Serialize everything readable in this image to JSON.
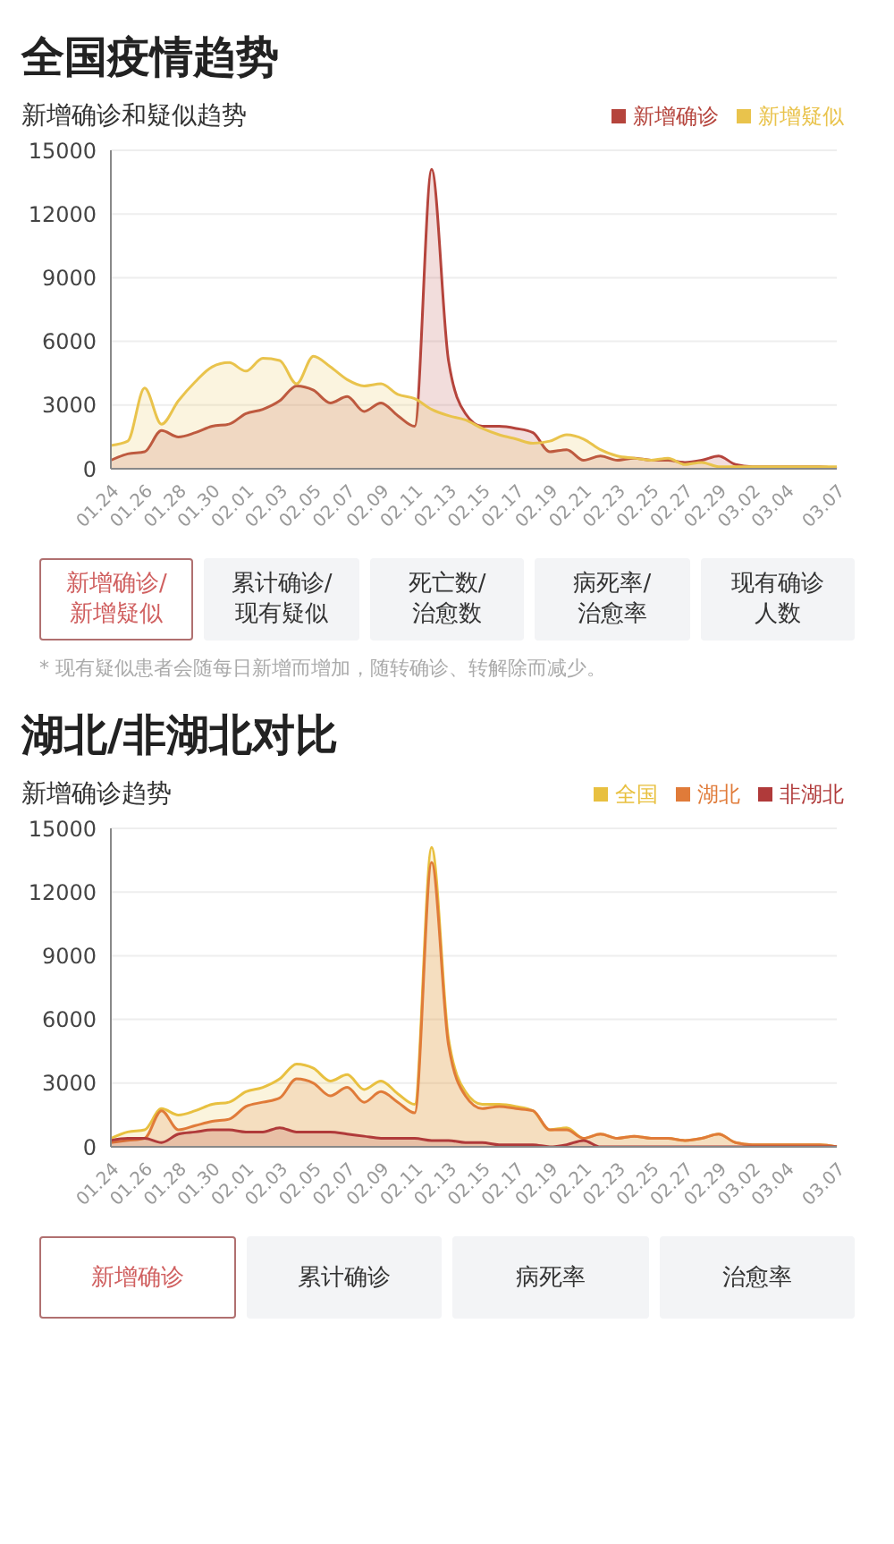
{
  "chart_data": [
    {
      "type": "area",
      "title": "全国疫情趋势",
      "subtitle": "新增确诊和疑似趋势",
      "categories": [
        "01.24",
        null,
        "01.26",
        null,
        "01.28",
        null,
        "01.30",
        null,
        "02.01",
        null,
        "02.03",
        null,
        "02.05",
        null,
        "02.07",
        null,
        "02.09",
        null,
        "02.11",
        null,
        "02.13",
        null,
        "02.15",
        null,
        "02.17",
        null,
        "02.19",
        null,
        "02.21",
        null,
        "02.23",
        null,
        "02.25",
        null,
        "02.27",
        null,
        "02.29",
        null,
        "03.02",
        null,
        "03.04",
        null,
        null,
        "03.07"
      ],
      "series": [
        {
          "name": "新增确诊",
          "color": "#b5443c",
          "values": [
            400,
            700,
            800,
            1800,
            1500,
            1700,
            2000,
            2100,
            2600,
            2800,
            3200,
            3900,
            3700,
            3100,
            3400,
            2700,
            3100,
            2500,
            2000,
            14100,
            5100,
            2600,
            2000,
            2000,
            1900,
            1700,
            800,
            900,
            400,
            600,
            400,
            500,
            400,
            400,
            300,
            400,
            600,
            200,
            100,
            100,
            100,
            100,
            100,
            0
          ]
        },
        {
          "name": "新增疑似",
          "color": "#e9c34c",
          "values": [
            1100,
            1300,
            3800,
            2100,
            3200,
            4100,
            4800,
            5000,
            4600,
            5200,
            5100,
            4000,
            5300,
            4800,
            4200,
            3900,
            4000,
            3500,
            3300,
            2800,
            2500,
            2300,
            1900,
            1600,
            1400,
            1200,
            1300,
            1600,
            1400,
            900,
            600,
            500,
            400,
            500,
            200,
            300,
            100,
            100,
            100,
            100,
            100,
            100,
            100,
            100
          ]
        }
      ],
      "ylim": [
        0,
        15000
      ],
      "yticks": [
        0,
        3000,
        6000,
        9000,
        12000,
        15000
      ],
      "grid": "y",
      "legend": "top right",
      "annotations": [
        "* 现有疑似患者会随每日新增而增加，随转确诊、转解除而减少。"
      ]
    },
    {
      "type": "other",
      "annotations": [
        "新增确诊/新增疑似",
        "累计确诊/现有疑似",
        "死亡数/治愈数",
        "病死率/治愈率",
        "现有确诊人数"
      ]
    },
    {
      "type": "area",
      "title": "湖北/非湖北对比",
      "subtitle": "新增确诊趋势",
      "categories": [
        "01.24",
        null,
        "01.26",
        null,
        "01.28",
        null,
        "01.30",
        null,
        "02.01",
        null,
        "02.03",
        null,
        "02.05",
        null,
        "02.07",
        null,
        "02.09",
        null,
        "02.11",
        null,
        "02.13",
        null,
        "02.15",
        null,
        "02.17",
        null,
        "02.19",
        null,
        "02.21",
        null,
        "02.23",
        null,
        "02.25",
        null,
        "02.27",
        null,
        "02.29",
        null,
        "03.02",
        null,
        "03.04",
        null,
        null,
        "03.07"
      ],
      "series": [
        {
          "name": "全国",
          "color": "#e8c040",
          "values": [
            400,
            700,
            800,
            1800,
            1500,
            1700,
            2000,
            2100,
            2600,
            2800,
            3200,
            3900,
            3700,
            3100,
            3400,
            2700,
            3100,
            2500,
            2000,
            14100,
            5100,
            2600,
            2000,
            2000,
            1900,
            1700,
            800,
            900,
            400,
            600,
            400,
            500,
            400,
            400,
            300,
            400,
            600,
            200,
            100,
            100,
            100,
            100,
            100,
            0
          ]
        },
        {
          "name": "湖北",
          "color": "#e07b39",
          "values": [
            200,
            300,
            400,
            1700,
            800,
            1000,
            1200,
            1300,
            1900,
            2100,
            2300,
            3200,
            3000,
            2400,
            2800,
            2100,
            2600,
            2100,
            1600,
            13400,
            4800,
            2400,
            1800,
            1900,
            1800,
            1700,
            800,
            800,
            400,
            600,
            400,
            500,
            400,
            400,
            300,
            400,
            600,
            200,
            100,
            100,
            100,
            100,
            100,
            0
          ]
        },
        {
          "name": "非湖北",
          "color": "#b03a3a",
          "values": [
            300,
            400,
            400,
            200,
            600,
            700,
            800,
            800,
            700,
            700,
            900,
            700,
            700,
            700,
            600,
            500,
            400,
            400,
            400,
            300,
            300,
            200,
            200,
            100,
            100,
            100,
            0,
            100,
            300,
            0,
            0,
            0,
            0,
            0,
            0,
            0,
            0,
            0,
            0,
            0,
            0,
            0,
            0,
            0
          ]
        }
      ],
      "ylim": [
        0,
        15000
      ],
      "yticks": [
        0,
        3000,
        6000,
        9000,
        12000,
        15000
      ],
      "grid": "y",
      "legend": "top right"
    },
    {
      "type": "other",
      "annotations": [
        "新增确诊",
        "累计确诊",
        "病死率",
        "治愈率"
      ]
    }
  ]
}
